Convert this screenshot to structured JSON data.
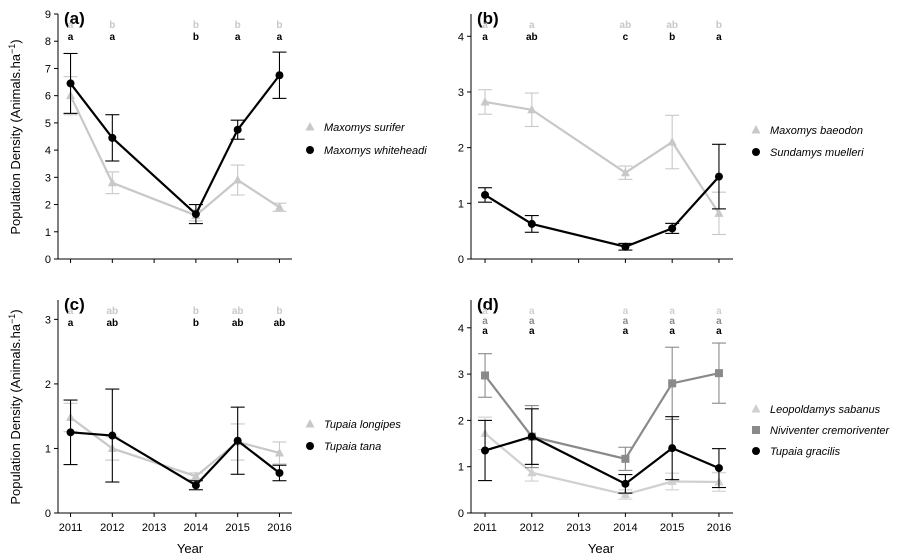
{
  "x_axis_title": "Year",
  "y_axis_title": "Population Density  (Animals.ha",
  "y_axis_unit_sup": "−1",
  "y_axis_close": ")",
  "chart_data": [
    {
      "type": "line",
      "panel": "(a)",
      "x_ticks": [
        2011,
        2012,
        2013,
        2014,
        2015,
        2016
      ],
      "ylim": [
        0,
        9
      ],
      "y_ticks": [
        0,
        1,
        2,
        3,
        4,
        5,
        6,
        7,
        8,
        9
      ],
      "series": [
        {
          "name": "Maxomys surifer",
          "color": "#c8c8c8",
          "marker": "triangle",
          "x": [
            2011,
            2012,
            2014,
            2015,
            2016
          ],
          "y": [
            6.0,
            2.8,
            1.6,
            2.9,
            1.9
          ],
          "err": [
            0.7,
            0.4,
            0.2,
            0.55,
            0.15
          ],
          "letters": [
            "a",
            "b",
            "b",
            "b",
            "b"
          ]
        },
        {
          "name": "Maxomys whiteheadi",
          "color": "#000000",
          "marker": "circle",
          "x": [
            2011,
            2012,
            2014,
            2015,
            2016
          ],
          "y": [
            6.45,
            4.45,
            1.65,
            4.75,
            6.75
          ],
          "err": [
            1.1,
            0.85,
            0.35,
            0.35,
            0.85
          ],
          "letters": [
            "a",
            "a",
            "b",
            "a",
            "a"
          ]
        }
      ],
      "legend_placement": "right"
    },
    {
      "type": "line",
      "panel": "(b)",
      "x_ticks": [
        2011,
        2012,
        2013,
        2014,
        2015,
        2016
      ],
      "ylim": [
        0,
        4.4
      ],
      "y_ticks": [
        0,
        1,
        2,
        3,
        4
      ],
      "series": [
        {
          "name": "Maxomys baeodon",
          "color": "#c8c8c8",
          "marker": "triangle",
          "x": [
            2011,
            2012,
            2014,
            2015,
            2016
          ],
          "y": [
            2.82,
            2.68,
            1.55,
            2.1,
            0.82
          ],
          "err": [
            0.22,
            0.3,
            0.12,
            0.48,
            0.38
          ],
          "letters": [
            "a",
            "a",
            "ab",
            "ab",
            "b"
          ]
        },
        {
          "name": "Sundamys muelleri",
          "color": "#000000",
          "marker": "circle",
          "x": [
            2011,
            2012,
            2014,
            2015,
            2016
          ],
          "y": [
            1.15,
            0.63,
            0.22,
            0.55,
            1.48
          ],
          "err": [
            0.13,
            0.15,
            0.06,
            0.09,
            0.58
          ],
          "letters": [
            "a",
            "ab",
            "c",
            "b",
            "a"
          ]
        }
      ],
      "legend_placement": "right"
    },
    {
      "type": "line",
      "panel": "(c)",
      "x_ticks": [
        2011,
        2012,
        2013,
        2014,
        2015,
        2016
      ],
      "ylim": [
        0,
        3.3
      ],
      "y_ticks": [
        0,
        1,
        2,
        3
      ],
      "series": [
        {
          "name": "Tupaia longipes",
          "color": "#c8c8c8",
          "marker": "triangle",
          "x": [
            2011,
            2012,
            2014,
            2015,
            2016
          ],
          "y": [
            1.48,
            1.0,
            0.57,
            1.1,
            0.93
          ],
          "err": [
            0.22,
            0.18,
            0.05,
            0.28,
            0.17
          ],
          "letters": [
            "a",
            "ab",
            "b",
            "ab",
            "b"
          ]
        },
        {
          "name": "Tupaia tana",
          "color": "#000000",
          "marker": "circle",
          "x": [
            2011,
            2012,
            2014,
            2015,
            2016
          ],
          "y": [
            1.25,
            1.2,
            0.43,
            1.12,
            0.62
          ],
          "err": [
            0.5,
            0.72,
            0.07,
            0.52,
            0.12
          ],
          "letters": [
            "a",
            "ab",
            "b",
            "ab",
            "ab"
          ]
        }
      ],
      "legend_placement": "right"
    },
    {
      "type": "line",
      "panel": "(d)",
      "x_ticks": [
        2011,
        2012,
        2013,
        2014,
        2015,
        2016
      ],
      "ylim": [
        0,
        4.6
      ],
      "y_ticks": [
        0,
        1,
        2,
        3,
        4
      ],
      "series": [
        {
          "name": "Leopoldamys sabanus",
          "color": "#d0d0d0",
          "marker": "triangle",
          "x": [
            2011,
            2012,
            2014,
            2015,
            2016
          ],
          "y": [
            1.72,
            0.87,
            0.4,
            0.68,
            0.67
          ],
          "err": [
            0.35,
            0.18,
            0.1,
            0.18,
            0.2
          ],
          "letters": [
            "a",
            "a",
            "a",
            "a",
            "a"
          ]
        },
        {
          "name": "Niviventer cremoriventer",
          "color": "#8a8a8a",
          "marker": "square",
          "x": [
            2011,
            2012,
            2014,
            2015,
            2016
          ],
          "y": [
            2.97,
            1.65,
            1.17,
            2.8,
            3.02
          ],
          "err": [
            0.47,
            0.67,
            0.25,
            0.78,
            0.65
          ],
          "letters": [
            "a",
            "a",
            "a",
            "a",
            "a"
          ]
        },
        {
          "name": "Tupaia gracilis",
          "color": "#000000",
          "marker": "circle",
          "x": [
            2011,
            2012,
            2014,
            2015,
            2016
          ],
          "y": [
            1.35,
            1.65,
            0.63,
            1.4,
            0.97
          ],
          "err": [
            0.65,
            0.6,
            0.2,
            0.68,
            0.42
          ],
          "letters": [
            "a",
            "a",
            "a",
            "a",
            "a"
          ]
        }
      ],
      "legend_placement": "right"
    }
  ]
}
